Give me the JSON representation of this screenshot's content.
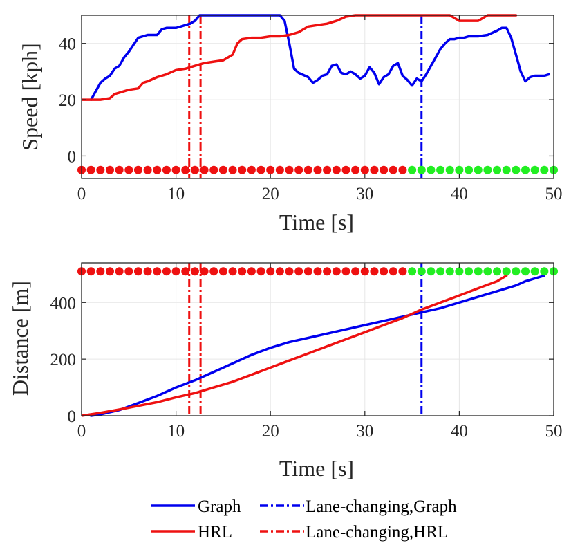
{
  "colors": {
    "graph": "#0000ee",
    "hrl": "#ee1111",
    "green_marker": "#22ee22",
    "grid": "#e6e6e6",
    "axis": "#262626"
  },
  "legend": {
    "graph_label": "Graph",
    "hrl_label": "HRL",
    "graph_lc_label": "Lane-changing,Graph",
    "hrl_lc_label": "Lane-changing,HRL"
  },
  "chart_data": [
    {
      "type": "line",
      "id": "speed",
      "title": "",
      "xlabel": "Time [s]",
      "ylabel": "Speed [kph]",
      "xlim": [
        0,
        50
      ],
      "ylim": [
        -8,
        50
      ],
      "xticks": [
        0,
        10,
        20,
        30,
        40,
        50
      ],
      "yticks": [
        0,
        20,
        40
      ],
      "grid": true,
      "series": [
        {
          "name": "Graph",
          "x": [
            1,
            1.5,
            2,
            2.5,
            3,
            3.5,
            4,
            4.5,
            5,
            5.5,
            6,
            6.5,
            7,
            8,
            8.5,
            9,
            10,
            10.5,
            11,
            11.5,
            12,
            12.5,
            13,
            20,
            21,
            21.5,
            22,
            22.5,
            23,
            24,
            24.5,
            25,
            25.5,
            26,
            26.5,
            27,
            27.5,
            28,
            28.5,
            29,
            29.5,
            30,
            30.5,
            31,
            31.5,
            32,
            32.5,
            33,
            33.5,
            34,
            34.5,
            35,
            35.5,
            36,
            36.5,
            37,
            37.5,
            38,
            38.5,
            39,
            39.5,
            40,
            40.5,
            41,
            42,
            43,
            44,
            44.5,
            45,
            45.5,
            46,
            46.5,
            47,
            47.5,
            48,
            49,
            49.5
          ],
          "y": [
            20,
            23,
            26,
            27.5,
            28.5,
            31,
            32,
            35,
            37,
            39.5,
            42,
            42.5,
            43,
            43,
            45,
            45.5,
            45.5,
            46,
            46.5,
            47,
            48,
            50,
            50,
            50,
            50,
            48,
            40,
            31,
            29.5,
            28,
            26,
            27,
            28.5,
            29,
            32,
            32.5,
            29.5,
            29,
            30,
            29,
            27.5,
            28.5,
            31.5,
            29.5,
            25.5,
            28,
            29,
            32,
            33,
            28.5,
            27,
            25,
            27.5,
            26.5,
            29,
            32,
            35,
            38,
            40,
            41.5,
            41.5,
            42,
            42,
            42.5,
            42.5,
            43,
            44.5,
            45.5,
            45.5,
            42,
            36,
            30,
            26.5,
            28,
            28.5,
            28.5,
            29
          ]
        },
        {
          "name": "HRL",
          "x": [
            0,
            1,
            2,
            3,
            3.5,
            4,
            5,
            6,
            6.5,
            7,
            8,
            9,
            10,
            11,
            12,
            13,
            14,
            15,
            16,
            16.5,
            17,
            18,
            19,
            20,
            21,
            22,
            23,
            24,
            25,
            26,
            27,
            28,
            29,
            30,
            31,
            32,
            33,
            34,
            35,
            36,
            37,
            38,
            39,
            40,
            41,
            42,
            43,
            44,
            45,
            46
          ],
          "y": [
            20,
            20,
            20,
            20.5,
            22,
            22.5,
            23.5,
            24,
            26,
            26.5,
            28,
            29,
            30.5,
            31,
            32,
            33,
            33.5,
            34,
            36,
            40,
            41.5,
            42,
            42,
            42.5,
            42.5,
            43,
            44,
            46,
            46.5,
            47,
            48,
            49.5,
            50,
            50,
            50,
            50,
            50,
            50,
            50,
            50,
            50,
            50,
            50,
            48,
            48,
            48,
            50,
            50,
            50,
            50
          ]
        }
      ],
      "lane_changes": [
        {
          "name": "Lane-changing,Graph",
          "x": [
            36
          ]
        },
        {
          "name": "Lane-changing,HRL",
          "x": [
            11.4,
            12.6
          ]
        }
      ],
      "marker_strip": {
        "y": -5,
        "red_x": [
          0,
          1,
          2,
          3,
          4,
          5,
          6,
          7,
          8,
          9,
          10,
          11,
          12,
          13,
          14,
          15,
          16,
          17,
          18,
          19,
          20,
          21,
          22,
          23,
          24,
          25,
          26,
          27,
          28,
          29,
          30,
          31,
          32,
          33,
          34
        ],
        "green_x": [
          35,
          36,
          37,
          38,
          39,
          40,
          41,
          42,
          43,
          44,
          45,
          46,
          47,
          48,
          49,
          50
        ]
      }
    },
    {
      "type": "line",
      "id": "distance",
      "title": "",
      "xlabel": "Time [s]",
      "ylabel": "Distance [m]",
      "xlim": [
        0,
        50
      ],
      "ylim": [
        0,
        540
      ],
      "xticks": [
        0,
        10,
        20,
        30,
        40,
        50
      ],
      "yticks": [
        0,
        200,
        400
      ],
      "grid": true,
      "series": [
        {
          "name": "Graph",
          "x": [
            1,
            2,
            4,
            6,
            8,
            10,
            12,
            14,
            16,
            18,
            20,
            21,
            22,
            24,
            26,
            28,
            30,
            32,
            34,
            36,
            38,
            40,
            42,
            44,
            46,
            47,
            48,
            49
          ],
          "y": [
            0,
            5,
            20,
            45,
            70,
            100,
            125,
            155,
            185,
            215,
            240,
            250,
            260,
            275,
            290,
            305,
            320,
            335,
            350,
            365,
            380,
            400,
            420,
            440,
            460,
            475,
            485,
            495
          ]
        },
        {
          "name": "HRL",
          "x": [
            0,
            2,
            4,
            6,
            8,
            10,
            12,
            14,
            16,
            18,
            20,
            22,
            24,
            26,
            28,
            30,
            32,
            34,
            36,
            38,
            40,
            42,
            44,
            45
          ],
          "y": [
            0,
            10,
            22,
            35,
            48,
            65,
            80,
            100,
            120,
            145,
            170,
            195,
            220,
            245,
            270,
            295,
            320,
            345,
            375,
            400,
            425,
            450,
            475,
            495
          ]
        }
      ],
      "lane_changes": [
        {
          "name": "Lane-changing,Graph",
          "x": [
            36
          ]
        },
        {
          "name": "Lane-changing,HRL",
          "x": [
            11.4,
            12.6
          ]
        }
      ],
      "marker_strip": {
        "y": 510,
        "red_x": [
          0,
          1,
          2,
          3,
          4,
          5,
          6,
          7,
          8,
          9,
          10,
          11,
          12,
          13,
          14,
          15,
          16,
          17,
          18,
          19,
          20,
          21,
          22,
          23,
          24,
          25,
          26,
          27,
          28,
          29,
          30,
          31,
          32,
          33,
          34
        ],
        "green_x": [
          35,
          36,
          37,
          38,
          39,
          40,
          41,
          42,
          43,
          44,
          45,
          46,
          47,
          48,
          49,
          50
        ]
      }
    }
  ]
}
